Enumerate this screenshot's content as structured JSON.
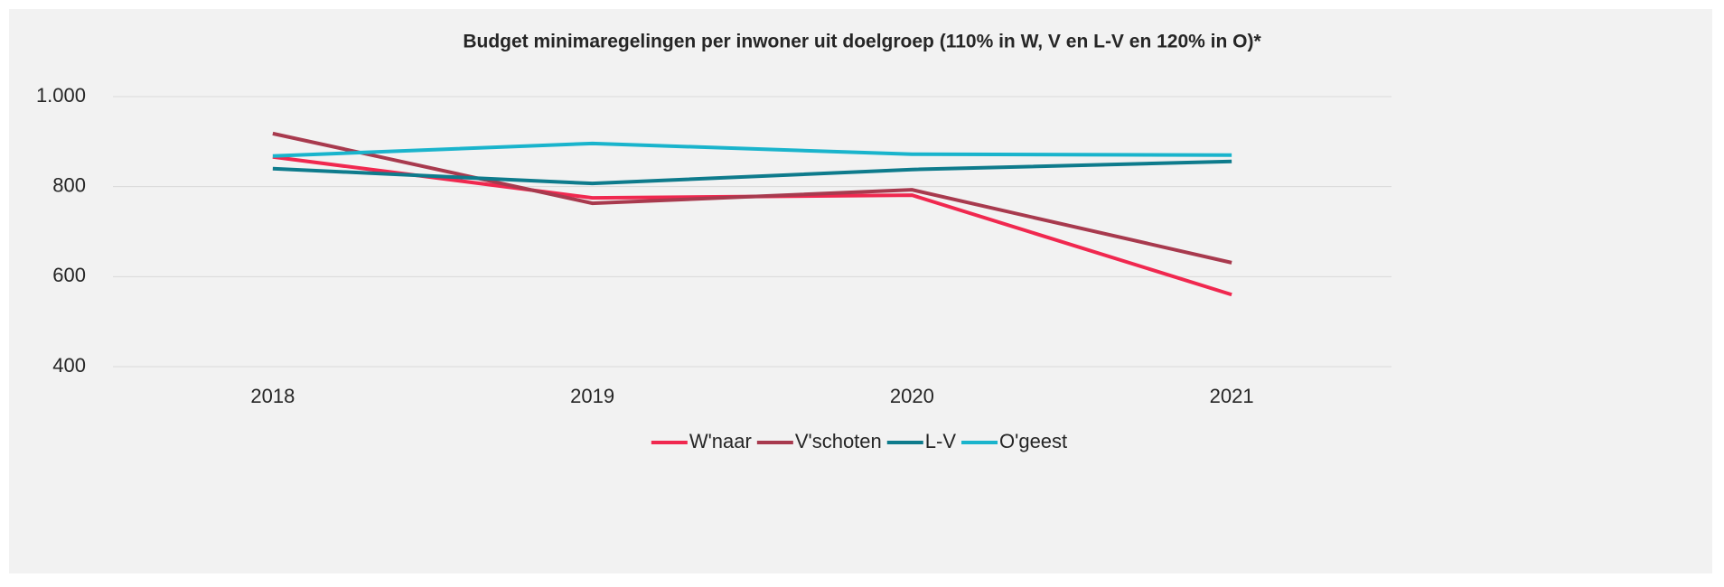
{
  "chart_data": {
    "type": "line",
    "title": "Budget minimaregelingen per inwoner uit doelgroep (110% in W, V en L-V en 120% in O)*",
    "categories": [
      "2018",
      "2019",
      "2020",
      "2021"
    ],
    "series": [
      {
        "name": "W'naar",
        "color": "#f0284f",
        "values": [
          866,
          775,
          781,
          560
        ]
      },
      {
        "name": "V'schoten",
        "color": "#a83a4e",
        "values": [
          918,
          763,
          793,
          631
        ]
      },
      {
        "name": "L-V",
        "color": "#0e7b8c",
        "values": [
          840,
          807,
          838,
          856
        ]
      },
      {
        "name": "O'geest",
        "color": "#1ab4cc",
        "values": [
          868,
          896,
          872,
          870
        ]
      }
    ],
    "ylim": [
      400,
      1000
    ],
    "yticks": [
      400,
      600,
      800,
      {
        "value": 1000,
        "label": "1.000"
      }
    ],
    "grid": true,
    "legend": "bottom"
  }
}
